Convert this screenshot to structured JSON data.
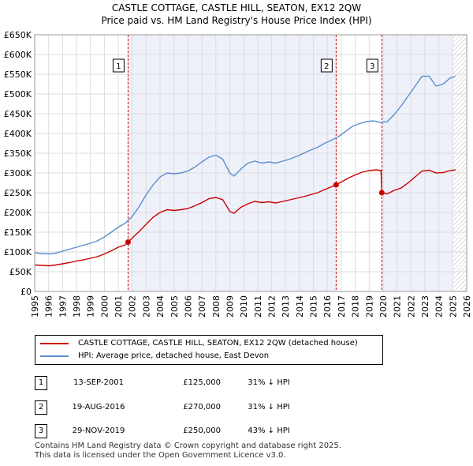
{
  "chart_data": {
    "type": "line",
    "title": "CASTLE COTTAGE, CASTLE HILL, SEATON, EX12 2QW",
    "subtitle": "Price paid vs. HM Land Registry's House Price Index (HPI)",
    "xlabel": "",
    "ylabel": "",
    "xlim": [
      1995,
      2026
    ],
    "ylim": [
      0,
      650000
    ],
    "x_ticks": [
      "1995",
      "1996",
      "1997",
      "1998",
      "1999",
      "2000",
      "2001",
      "2002",
      "2003",
      "2004",
      "2005",
      "2006",
      "2007",
      "2008",
      "2009",
      "2010",
      "2011",
      "2012",
      "2013",
      "2014",
      "2015",
      "2016",
      "2017",
      "2018",
      "2019",
      "2020",
      "2021",
      "2022",
      "2023",
      "2024",
      "2025",
      "2026"
    ],
    "y_ticks": [
      {
        "value": 0,
        "label": "£0"
      },
      {
        "value": 50000,
        "label": "£50K"
      },
      {
        "value": 100000,
        "label": "£100K"
      },
      {
        "value": 150000,
        "label": "£150K"
      },
      {
        "value": 200000,
        "label": "£200K"
      },
      {
        "value": 250000,
        "label": "£250K"
      },
      {
        "value": 300000,
        "label": "£300K"
      },
      {
        "value": 350000,
        "label": "£350K"
      },
      {
        "value": 400000,
        "label": "£400K"
      },
      {
        "value": 450000,
        "label": "£450K"
      },
      {
        "value": 500000,
        "label": "£500K"
      },
      {
        "value": 550000,
        "label": "£550K"
      },
      {
        "value": 600000,
        "label": "£600K"
      },
      {
        "value": 650000,
        "label": "£650K"
      }
    ],
    "grid": true,
    "series": [
      {
        "name": "CASTLE COTTAGE, CASTLE HILL, SEATON, EX12 2QW (detached house)",
        "color": "#cc0000",
        "points": [
          [
            1995.0,
            67000
          ],
          [
            1995.5,
            66000
          ],
          [
            1996.0,
            65000
          ],
          [
            1996.5,
            67000
          ],
          [
            1997.0,
            70000
          ],
          [
            1997.5,
            73000
          ],
          [
            1998.0,
            77000
          ],
          [
            1998.5,
            80000
          ],
          [
            1999.0,
            84000
          ],
          [
            1999.5,
            88000
          ],
          [
            2000.0,
            95000
          ],
          [
            2000.5,
            103000
          ],
          [
            2001.0,
            112000
          ],
          [
            2001.5,
            118000
          ],
          [
            2001.7,
            125000
          ],
          [
            2002.0,
            135000
          ],
          [
            2002.5,
            152000
          ],
          [
            2003.0,
            170000
          ],
          [
            2003.5,
            188000
          ],
          [
            2004.0,
            200000
          ],
          [
            2004.5,
            207000
          ],
          [
            2005.0,
            205000
          ],
          [
            2005.5,
            207000
          ],
          [
            2006.0,
            210000
          ],
          [
            2006.5,
            217000
          ],
          [
            2007.0,
            225000
          ],
          [
            2007.5,
            235000
          ],
          [
            2008.0,
            238000
          ],
          [
            2008.5,
            232000
          ],
          [
            2009.0,
            203000
          ],
          [
            2009.3,
            198000
          ],
          [
            2009.8,
            213000
          ],
          [
            2010.3,
            222000
          ],
          [
            2010.8,
            228000
          ],
          [
            2011.3,
            225000
          ],
          [
            2011.8,
            227000
          ],
          [
            2012.3,
            224000
          ],
          [
            2012.8,
            228000
          ],
          [
            2013.3,
            232000
          ],
          [
            2013.8,
            236000
          ],
          [
            2014.3,
            240000
          ],
          [
            2014.8,
            245000
          ],
          [
            2015.3,
            250000
          ],
          [
            2015.8,
            258000
          ],
          [
            2016.3,
            265000
          ],
          [
            2016.63,
            270000
          ],
          [
            2017.0,
            277000
          ],
          [
            2017.5,
            287000
          ],
          [
            2018.0,
            295000
          ],
          [
            2018.5,
            302000
          ],
          [
            2019.0,
            306000
          ],
          [
            2019.5,
            308000
          ],
          [
            2019.85,
            306000
          ],
          [
            2019.91,
            250000
          ],
          [
            2020.3,
            247000
          ],
          [
            2020.8,
            256000
          ],
          [
            2021.3,
            262000
          ],
          [
            2021.8,
            275000
          ],
          [
            2022.3,
            290000
          ],
          [
            2022.8,
            305000
          ],
          [
            2023.3,
            307000
          ],
          [
            2023.8,
            300000
          ],
          [
            2024.3,
            301000
          ],
          [
            2024.8,
            306000
          ],
          [
            2025.2,
            308000
          ]
        ]
      },
      {
        "name": "HPI: Average price, detached house, East Devon",
        "color": "#5b8fcf",
        "points": [
          [
            1995.0,
            98000
          ],
          [
            1995.5,
            96000
          ],
          [
            1996.0,
            95000
          ],
          [
            1996.5,
            97000
          ],
          [
            1997.0,
            102000
          ],
          [
            1997.5,
            107000
          ],
          [
            1998.0,
            112000
          ],
          [
            1998.5,
            117000
          ],
          [
            1999.0,
            122000
          ],
          [
            1999.5,
            128000
          ],
          [
            2000.0,
            138000
          ],
          [
            2000.5,
            150000
          ],
          [
            2001.0,
            163000
          ],
          [
            2001.5,
            173000
          ],
          [
            2002.0,
            190000
          ],
          [
            2002.5,
            215000
          ],
          [
            2003.0,
            245000
          ],
          [
            2003.5,
            270000
          ],
          [
            2004.0,
            290000
          ],
          [
            2004.5,
            300000
          ],
          [
            2005.0,
            298000
          ],
          [
            2005.5,
            300000
          ],
          [
            2006.0,
            305000
          ],
          [
            2006.5,
            315000
          ],
          [
            2007.0,
            328000
          ],
          [
            2007.5,
            340000
          ],
          [
            2008.0,
            345000
          ],
          [
            2008.5,
            335000
          ],
          [
            2009.0,
            300000
          ],
          [
            2009.3,
            292000
          ],
          [
            2009.8,
            310000
          ],
          [
            2010.3,
            325000
          ],
          [
            2010.8,
            330000
          ],
          [
            2011.3,
            325000
          ],
          [
            2011.8,
            328000
          ],
          [
            2012.3,
            325000
          ],
          [
            2012.8,
            330000
          ],
          [
            2013.3,
            335000
          ],
          [
            2013.8,
            342000
          ],
          [
            2014.3,
            350000
          ],
          [
            2014.8,
            358000
          ],
          [
            2015.3,
            365000
          ],
          [
            2015.8,
            375000
          ],
          [
            2016.3,
            383000
          ],
          [
            2016.8,
            392000
          ],
          [
            2017.3,
            405000
          ],
          [
            2017.8,
            418000
          ],
          [
            2018.3,
            425000
          ],
          [
            2018.8,
            430000
          ],
          [
            2019.3,
            432000
          ],
          [
            2019.8,
            428000
          ],
          [
            2020.3,
            430000
          ],
          [
            2020.8,
            448000
          ],
          [
            2021.3,
            470000
          ],
          [
            2021.8,
            495000
          ],
          [
            2022.3,
            520000
          ],
          [
            2022.8,
            545000
          ],
          [
            2023.3,
            545000
          ],
          [
            2023.8,
            520000
          ],
          [
            2024.3,
            525000
          ],
          [
            2024.8,
            540000
          ],
          [
            2025.2,
            545000
          ]
        ]
      }
    ],
    "transactions": [
      {
        "label": "1",
        "x": 2001.7,
        "y": 125000,
        "date": "13-SEP-2001",
        "price": "£125,000",
        "hpi": "31% ↓ HPI"
      },
      {
        "label": "2",
        "x": 2016.63,
        "y": 270000,
        "date": "19-AUG-2016",
        "price": "£270,000",
        "hpi": "31% ↓ HPI"
      },
      {
        "label": "3",
        "x": 2019.91,
        "y": 250000,
        "date": "29-NOV-2019",
        "price": "£250,000",
        "hpi": "43% ↓ HPI"
      }
    ],
    "forecast_start": 2025.0,
    "marker_line_color": "#cc0000",
    "highlight_color": "#eef0fa"
  },
  "legend": {
    "property_label": "CASTLE COTTAGE, CASTLE HILL, SEATON, EX12 2QW (detached house)",
    "hpi_label": "HPI: Average price, detached house, East Devon"
  },
  "table": [
    {
      "num": "1",
      "date": "13-SEP-2001",
      "price": "£125,000",
      "hpi": "31% ↓ HPI"
    },
    {
      "num": "2",
      "date": "19-AUG-2016",
      "price": "£270,000",
      "hpi": "31% ↓ HPI"
    },
    {
      "num": "3",
      "date": "29-NOV-2019",
      "price": "£250,000",
      "hpi": "43% ↓ HPI"
    }
  ],
  "footer": {
    "line1": "Contains HM Land Registry data © Crown copyright and database right 2025.",
    "line2": "This data is licensed under the Open Government Licence v3.0."
  }
}
